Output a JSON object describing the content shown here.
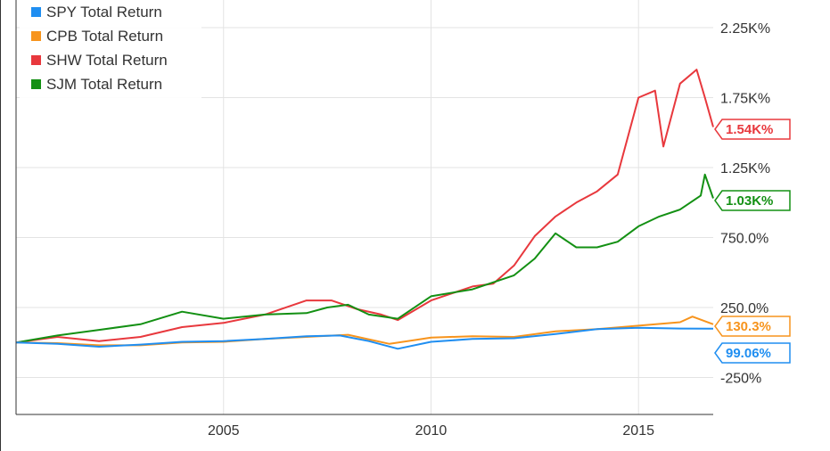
{
  "chart_data": {
    "type": "line",
    "title": "",
    "xlabel": "",
    "ylabel": "",
    "x_range": [
      2000,
      2016.8
    ],
    "ylim": [
      -650,
      2600
    ],
    "x_ticks": [
      {
        "value": 2005,
        "label": "2005"
      },
      {
        "value": 2010,
        "label": "2010"
      },
      {
        "value": 2015,
        "label": "2015"
      }
    ],
    "y_ticks": [
      {
        "value": 2250,
        "label": "2.25K%"
      },
      {
        "value": 1750,
        "label": "1.75K%"
      },
      {
        "value": 1250,
        "label": "1.25K%"
      },
      {
        "value": 750,
        "label": "750.0%"
      },
      {
        "value": 250,
        "label": "250.0%"
      },
      {
        "value": -250,
        "label": "-250%"
      }
    ],
    "grid": true,
    "legend_position": "top-left",
    "series": [
      {
        "name": "SPY Total Return",
        "color": "#1f8ef1",
        "end_label": "99.06%",
        "points": [
          [
            2000,
            0
          ],
          [
            2001,
            -10
          ],
          [
            2002,
            -30
          ],
          [
            2003,
            -15
          ],
          [
            2004,
            5
          ],
          [
            2005,
            10
          ],
          [
            2006,
            25
          ],
          [
            2007,
            45
          ],
          [
            2007.8,
            50
          ],
          [
            2008.5,
            10
          ],
          [
            2009.2,
            -45
          ],
          [
            2010,
            5
          ],
          [
            2011,
            25
          ],
          [
            2012,
            30
          ],
          [
            2013,
            60
          ],
          [
            2014,
            95
          ],
          [
            2015,
            105
          ],
          [
            2016,
            100
          ],
          [
            2016.8,
            99.06
          ]
        ]
      },
      {
        "name": "CPB Total Return",
        "color": "#f7941d",
        "end_label": "130.3%",
        "points": [
          [
            2000,
            0
          ],
          [
            2001,
            -5
          ],
          [
            2002,
            -20
          ],
          [
            2003,
            -20
          ],
          [
            2004,
            0
          ],
          [
            2005,
            5
          ],
          [
            2006,
            25
          ],
          [
            2007,
            40
          ],
          [
            2008,
            55
          ],
          [
            2009,
            -10
          ],
          [
            2010,
            35
          ],
          [
            2011,
            45
          ],
          [
            2012,
            40
          ],
          [
            2013,
            80
          ],
          [
            2014,
            95
          ],
          [
            2015,
            120
          ],
          [
            2016,
            145
          ],
          [
            2016.3,
            185
          ],
          [
            2016.8,
            130.3
          ]
        ]
      },
      {
        "name": "SHW Total Return",
        "color": "#e8383d",
        "end_label": "1.54K%",
        "points": [
          [
            2000,
            0
          ],
          [
            2001,
            40
          ],
          [
            2002,
            10
          ],
          [
            2003,
            40
          ],
          [
            2004,
            110
          ],
          [
            2005,
            140
          ],
          [
            2006,
            200
          ],
          [
            2007,
            300
          ],
          [
            2007.6,
            300
          ],
          [
            2008.2,
            240
          ],
          [
            2008.8,
            200
          ],
          [
            2009.2,
            160
          ],
          [
            2010,
            300
          ],
          [
            2011,
            400
          ],
          [
            2011.5,
            420
          ],
          [
            2012,
            550
          ],
          [
            2012.5,
            760
          ],
          [
            2013,
            900
          ],
          [
            2013.5,
            1000
          ],
          [
            2014,
            1080
          ],
          [
            2014.5,
            1200
          ],
          [
            2015,
            1750
          ],
          [
            2015.4,
            1800
          ],
          [
            2015.6,
            1400
          ],
          [
            2016,
            1850
          ],
          [
            2016.4,
            1950
          ],
          [
            2016.6,
            1750
          ],
          [
            2016.8,
            1540
          ]
        ]
      },
      {
        "name": "SJM Total Return",
        "color": "#139013",
        "end_label": "1.03K%",
        "points": [
          [
            2000,
            0
          ],
          [
            2001,
            50
          ],
          [
            2002,
            90
          ],
          [
            2003,
            130
          ],
          [
            2004,
            220
          ],
          [
            2005,
            170
          ],
          [
            2006,
            200
          ],
          [
            2007,
            210
          ],
          [
            2007.5,
            250
          ],
          [
            2008,
            270
          ],
          [
            2008.5,
            200
          ],
          [
            2009.2,
            170
          ],
          [
            2010,
            330
          ],
          [
            2011,
            380
          ],
          [
            2012,
            480
          ],
          [
            2012.5,
            600
          ],
          [
            2013,
            780
          ],
          [
            2013.5,
            680
          ],
          [
            2014,
            680
          ],
          [
            2014.5,
            720
          ],
          [
            2015,
            830
          ],
          [
            2015.5,
            900
          ],
          [
            2016,
            950
          ],
          [
            2016.5,
            1050
          ],
          [
            2016.6,
            1200
          ],
          [
            2016.8,
            1030
          ]
        ]
      }
    ]
  }
}
